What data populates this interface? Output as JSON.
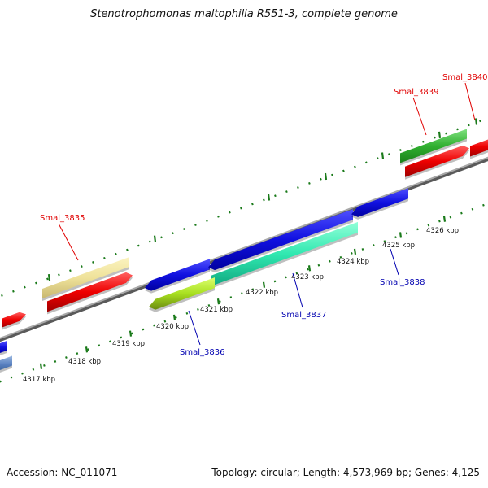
{
  "title": "Stenotrophomonas maltophilia R551-3, complete genome",
  "footer": {
    "accession": "Accession: NC_011071",
    "summary": "Topology: circular; Length: 4,573,969 bp; Genes: 4,125"
  },
  "colors": {
    "forward_label": "#e00000",
    "reverse_label": "#0000b0",
    "tick": "#1a7a1a",
    "backbone": "#8a8a8a"
  },
  "kbp_ticks": [
    "4317 kbp",
    "4318 kbp",
    "4319 kbp",
    "4320 kbp",
    "4321 kbp",
    "4322 kbp",
    "4323 kbp",
    "4324 kbp",
    "4325 kbp",
    "4326 kbp"
  ],
  "gene_labels": [
    {
      "text": "Smal_3835",
      "strand": "forward"
    },
    {
      "text": "Smal_3839",
      "strand": "forward"
    },
    {
      "text": "Smal_3840",
      "strand": "forward"
    },
    {
      "text": "Smal_3836",
      "strand": "reverse"
    },
    {
      "text": "Smal_3837",
      "strand": "reverse"
    },
    {
      "text": "Smal_3838",
      "strand": "reverse"
    }
  ]
}
